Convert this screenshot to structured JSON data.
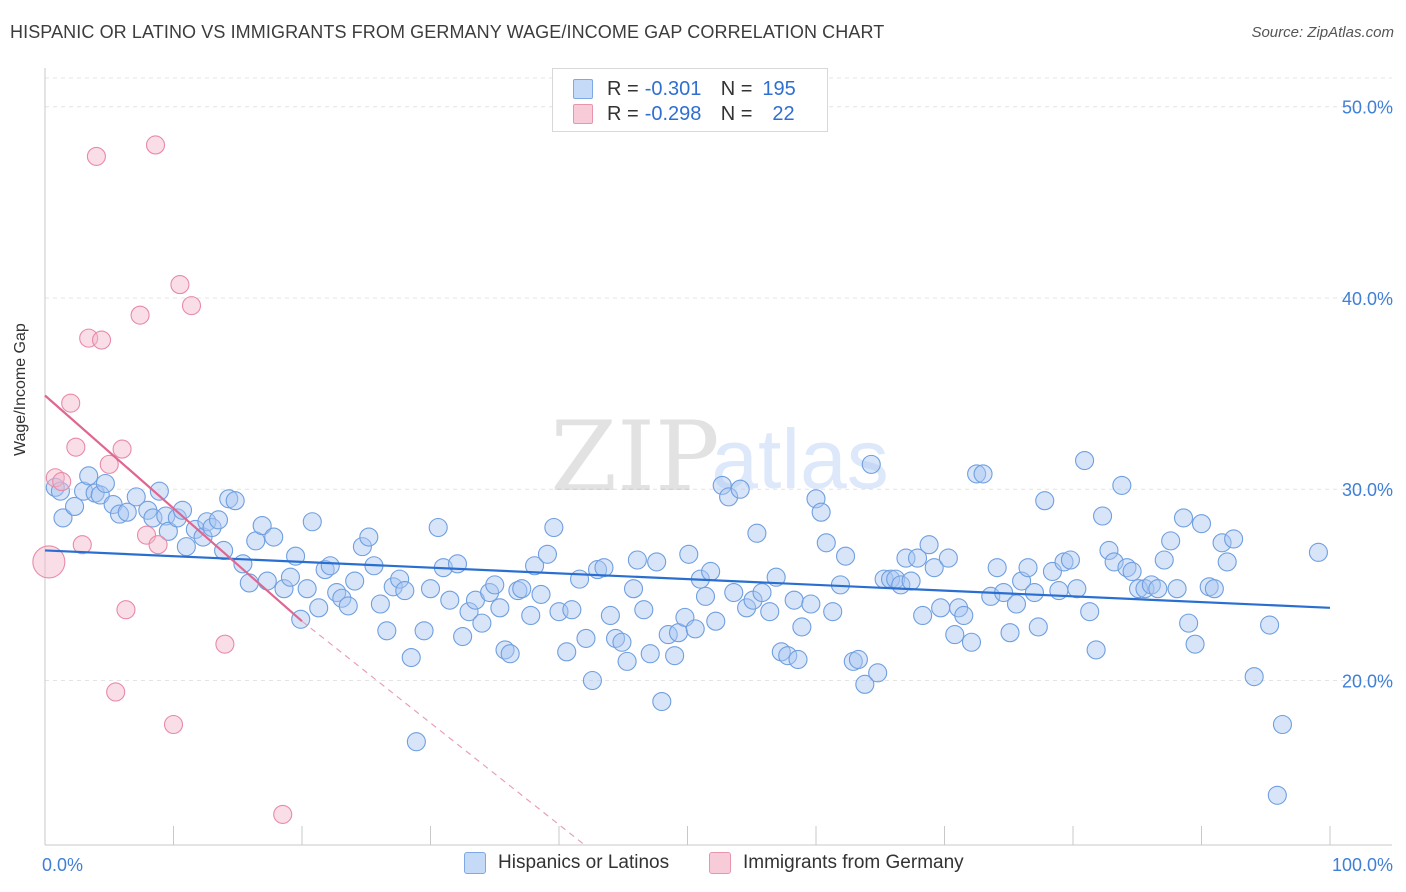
{
  "header": {
    "title": "HISPANIC OR LATINO VS IMMIGRANTS FROM GERMANY WAGE/INCOME GAP CORRELATION CHART",
    "source": "Source: ZipAtlas.com"
  },
  "watermark": {
    "zip": "ZIP",
    "atlas": "atlas"
  },
  "legend": {
    "rows": [
      {
        "r_label": "R =",
        "r_value": "-0.301",
        "n_label": "N =",
        "n_value": "195",
        "color": "#a8c6f2"
      },
      {
        "r_label": "R =",
        "r_value": "-0.298",
        "n_label": "N =",
        "n_value": "22",
        "color": "#f5b5c9"
      }
    ]
  },
  "bottom_legend": [
    {
      "label": "Hispanics or Latinos",
      "color": "#a8c6f2"
    },
    {
      "label": "Immigrants from Germany",
      "color": "#f5b5c9"
    }
  ],
  "chart_data": {
    "type": "scatter",
    "title": "HISPANIC OR LATINO VS IMMIGRANTS FROM GERMANY WAGE/INCOME GAP CORRELATION CHART",
    "xlabel": "",
    "ylabel": "Wage/Income Gap",
    "xlim": [
      0,
      100
    ],
    "ylim": [
      10,
      52
    ],
    "x_tick_labels": [
      {
        "value": 0,
        "label": "0.0%"
      },
      {
        "value": 100,
        "label": "100.0%"
      }
    ],
    "y_tick_labels": [
      {
        "value": 20,
        "label": "20.0%"
      },
      {
        "value": 30,
        "label": "30.0%"
      },
      {
        "value": 40,
        "label": "40.0%"
      },
      {
        "value": 50,
        "label": "50.0%"
      }
    ],
    "grid": true,
    "legend_position": "top-center",
    "series": [
      {
        "name": "Hispanics or Latinos",
        "color": "#6f9fe0",
        "fill": "#a8c6f2",
        "r": -0.301,
        "n": 195,
        "trend": {
          "x0": 0,
          "y0": 26.8,
          "x1": 100,
          "y1": 23.8
        },
        "points": [
          [
            0.8,
            30.1
          ],
          [
            1.2,
            29.9
          ],
          [
            1.4,
            28.5
          ],
          [
            2.3,
            29.1
          ],
          [
            3.0,
            29.9
          ],
          [
            3.4,
            30.7
          ],
          [
            3.9,
            29.8
          ],
          [
            4.3,
            29.7
          ],
          [
            4.7,
            30.3
          ],
          [
            5.3,
            29.2
          ],
          [
            5.8,
            28.7
          ],
          [
            6.4,
            28.8
          ],
          [
            7.1,
            29.6
          ],
          [
            8.0,
            28.9
          ],
          [
            8.4,
            28.5
          ],
          [
            8.9,
            29.9
          ],
          [
            9.4,
            28.6
          ],
          [
            9.6,
            27.8
          ],
          [
            10.3,
            28.5
          ],
          [
            10.7,
            28.9
          ],
          [
            11.0,
            27.0
          ],
          [
            11.7,
            27.9
          ],
          [
            12.3,
            27.5
          ],
          [
            12.6,
            28.3
          ],
          [
            13.0,
            28.0
          ],
          [
            13.5,
            28.4
          ],
          [
            13.9,
            26.8
          ],
          [
            14.3,
            29.5
          ],
          [
            14.8,
            29.4
          ],
          [
            15.4,
            26.1
          ],
          [
            15.9,
            25.1
          ],
          [
            16.4,
            27.3
          ],
          [
            16.9,
            28.1
          ],
          [
            17.3,
            25.2
          ],
          [
            17.8,
            27.5
          ],
          [
            18.6,
            24.8
          ],
          [
            19.1,
            25.4
          ],
          [
            19.5,
            26.5
          ],
          [
            19.9,
            23.2
          ],
          [
            20.4,
            24.8
          ],
          [
            20.8,
            28.3
          ],
          [
            21.3,
            23.8
          ],
          [
            21.8,
            25.8
          ],
          [
            22.2,
            26.0
          ],
          [
            22.7,
            24.6
          ],
          [
            23.1,
            24.3
          ],
          [
            23.6,
            23.9
          ],
          [
            24.1,
            25.2
          ],
          [
            24.7,
            27.0
          ],
          [
            25.2,
            27.5
          ],
          [
            25.6,
            26.0
          ],
          [
            26.1,
            24.0
          ],
          [
            26.6,
            22.6
          ],
          [
            27.1,
            24.9
          ],
          [
            27.6,
            25.3
          ],
          [
            28.0,
            24.7
          ],
          [
            28.5,
            21.2
          ],
          [
            28.9,
            16.8
          ],
          [
            29.5,
            22.6
          ],
          [
            30.0,
            24.8
          ],
          [
            30.6,
            28.0
          ],
          [
            31.0,
            25.9
          ],
          [
            31.5,
            24.2
          ],
          [
            32.1,
            26.1
          ],
          [
            32.5,
            22.3
          ],
          [
            33.0,
            23.6
          ],
          [
            33.5,
            24.2
          ],
          [
            34.0,
            23.0
          ],
          [
            34.6,
            24.6
          ],
          [
            35.0,
            25.0
          ],
          [
            35.4,
            23.8
          ],
          [
            35.8,
            21.6
          ],
          [
            36.2,
            21.4
          ],
          [
            36.8,
            24.7
          ],
          [
            37.1,
            24.8
          ],
          [
            37.8,
            23.4
          ],
          [
            38.1,
            26.0
          ],
          [
            38.6,
            24.5
          ],
          [
            39.1,
            26.6
          ],
          [
            39.6,
            28.0
          ],
          [
            40.0,
            23.6
          ],
          [
            40.6,
            21.5
          ],
          [
            41.0,
            23.7
          ],
          [
            41.6,
            25.3
          ],
          [
            42.1,
            22.2
          ],
          [
            42.6,
            20.0
          ],
          [
            43.0,
            25.8
          ],
          [
            43.5,
            25.9
          ],
          [
            44.0,
            23.4
          ],
          [
            44.4,
            22.2
          ],
          [
            44.9,
            22.0
          ],
          [
            45.3,
            21.0
          ],
          [
            45.8,
            24.8
          ],
          [
            46.1,
            26.3
          ],
          [
            46.6,
            23.7
          ],
          [
            47.1,
            21.4
          ],
          [
            47.6,
            26.2
          ],
          [
            48.0,
            18.9
          ],
          [
            48.5,
            22.4
          ],
          [
            49.0,
            21.3
          ],
          [
            49.3,
            22.5
          ],
          [
            49.8,
            23.3
          ],
          [
            50.1,
            26.6
          ],
          [
            50.6,
            22.7
          ],
          [
            51.0,
            25.3
          ],
          [
            51.4,
            24.4
          ],
          [
            51.8,
            25.7
          ],
          [
            52.2,
            23.1
          ],
          [
            52.7,
            30.2
          ],
          [
            53.2,
            29.6
          ],
          [
            53.6,
            24.6
          ],
          [
            54.1,
            30.0
          ],
          [
            54.6,
            23.8
          ],
          [
            55.1,
            24.2
          ],
          [
            55.4,
            27.7
          ],
          [
            55.8,
            24.6
          ],
          [
            56.4,
            23.6
          ],
          [
            56.9,
            25.4
          ],
          [
            57.3,
            21.5
          ],
          [
            57.8,
            21.3
          ],
          [
            58.3,
            24.2
          ],
          [
            58.6,
            21.1
          ],
          [
            58.9,
            22.8
          ],
          [
            59.6,
            24.0
          ],
          [
            60.0,
            29.5
          ],
          [
            60.4,
            28.8
          ],
          [
            60.8,
            27.2
          ],
          [
            61.3,
            23.6
          ],
          [
            61.9,
            25.0
          ],
          [
            62.3,
            26.5
          ],
          [
            62.9,
            21.0
          ],
          [
            63.3,
            21.1
          ],
          [
            63.8,
            19.8
          ],
          [
            64.3,
            31.3
          ],
          [
            64.8,
            20.4
          ],
          [
            65.3,
            25.3
          ],
          [
            65.8,
            25.3
          ],
          [
            66.2,
            25.3
          ],
          [
            66.6,
            25.0
          ],
          [
            67.0,
            26.4
          ],
          [
            67.4,
            25.2
          ],
          [
            67.9,
            26.4
          ],
          [
            68.3,
            23.4
          ],
          [
            68.8,
            27.1
          ],
          [
            69.2,
            25.9
          ],
          [
            69.7,
            23.8
          ],
          [
            70.3,
            26.4
          ],
          [
            70.8,
            22.4
          ],
          [
            71.1,
            23.8
          ],
          [
            71.5,
            23.4
          ],
          [
            72.1,
            22.0
          ],
          [
            72.5,
            30.8
          ],
          [
            73.0,
            30.8
          ],
          [
            73.6,
            24.4
          ],
          [
            74.1,
            25.9
          ],
          [
            74.6,
            24.6
          ],
          [
            75.1,
            22.5
          ],
          [
            75.6,
            24.0
          ],
          [
            76.0,
            25.2
          ],
          [
            76.5,
            25.9
          ],
          [
            77.0,
            24.6
          ],
          [
            77.3,
            22.8
          ],
          [
            77.8,
            29.4
          ],
          [
            78.4,
            25.7
          ],
          [
            78.9,
            24.7
          ],
          [
            79.3,
            26.2
          ],
          [
            79.8,
            26.3
          ],
          [
            80.3,
            24.8
          ],
          [
            80.9,
            31.5
          ],
          [
            81.3,
            23.6
          ],
          [
            81.8,
            21.6
          ],
          [
            82.3,
            28.6
          ],
          [
            82.8,
            26.8
          ],
          [
            83.2,
            26.2
          ],
          [
            83.8,
            30.2
          ],
          [
            84.2,
            25.9
          ],
          [
            84.6,
            25.7
          ],
          [
            85.1,
            24.8
          ],
          [
            85.6,
            24.8
          ],
          [
            86.1,
            25.0
          ],
          [
            86.6,
            24.8
          ],
          [
            87.1,
            26.3
          ],
          [
            87.6,
            27.3
          ],
          [
            88.1,
            24.8
          ],
          [
            88.6,
            28.5
          ],
          [
            89.0,
            23.0
          ],
          [
            89.5,
            21.9
          ],
          [
            90.0,
            28.2
          ],
          [
            90.6,
            24.9
          ],
          [
            91.0,
            24.8
          ],
          [
            91.6,
            27.2
          ],
          [
            92.0,
            26.2
          ],
          [
            92.5,
            27.4
          ],
          [
            94.1,
            20.2
          ],
          [
            95.3,
            22.9
          ],
          [
            95.9,
            14.0
          ],
          [
            96.3,
            17.7
          ],
          [
            99.1,
            26.7
          ]
        ]
      },
      {
        "name": "Immigrants from Germany",
        "color": "#e88aa6",
        "fill": "#f5b5c9",
        "r": -0.298,
        "n": 22,
        "trend": {
          "x0": 0,
          "y0": 34.9,
          "x1": 20,
          "y1": 23.1
        },
        "trend_extension": {
          "x0": 20,
          "y0": 23.1,
          "x1": 42,
          "y1": 10.0
        },
        "points": [
          [
            0.3,
            26.2
          ],
          [
            0.8,
            30.6
          ],
          [
            1.3,
            30.4
          ],
          [
            2.0,
            34.5
          ],
          [
            2.4,
            32.2
          ],
          [
            2.9,
            27.1
          ],
          [
            3.4,
            37.9
          ],
          [
            4.0,
            47.4
          ],
          [
            4.4,
            37.8
          ],
          [
            5.0,
            31.3
          ],
          [
            5.5,
            19.4
          ],
          [
            6.0,
            32.1
          ],
          [
            6.3,
            23.7
          ],
          [
            7.4,
            39.1
          ],
          [
            7.9,
            27.6
          ],
          [
            8.6,
            48.0
          ],
          [
            8.8,
            27.1
          ],
          [
            10.0,
            17.7
          ],
          [
            10.5,
            40.7
          ],
          [
            11.4,
            39.6
          ],
          [
            14.0,
            21.9
          ],
          [
            18.5,
            13.0
          ]
        ]
      }
    ]
  }
}
